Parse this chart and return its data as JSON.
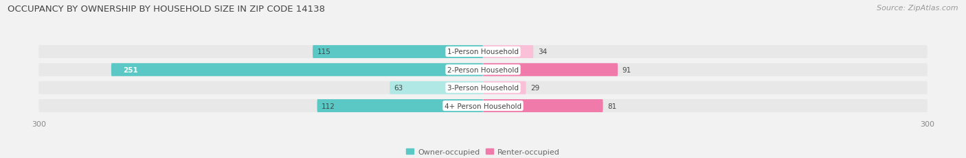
{
  "title": "OCCUPANCY BY OWNERSHIP BY HOUSEHOLD SIZE IN ZIP CODE 14138",
  "source": "Source: ZipAtlas.com",
  "categories": [
    "1-Person Household",
    "2-Person Household",
    "3-Person Household",
    "4+ Person Household"
  ],
  "owner_values": [
    115,
    251,
    63,
    112
  ],
  "renter_values": [
    34,
    91,
    29,
    81
  ],
  "owner_color": "#5bc8c5",
  "renter_color": "#f07aaa",
  "owner_color_light": "#b0e8e6",
  "renter_color_light": "#f9c0d8",
  "owner_label": "Owner-occupied",
  "renter_label": "Renter-occupied",
  "axis_max": 300,
  "background_color": "#f2f2f2",
  "row_bg_color": "#e8e8e8",
  "title_fontsize": 9.5,
  "source_fontsize": 8,
  "value_fontsize": 7.5,
  "cat_fontsize": 7.5,
  "tick_fontsize": 8,
  "legend_fontsize": 8
}
